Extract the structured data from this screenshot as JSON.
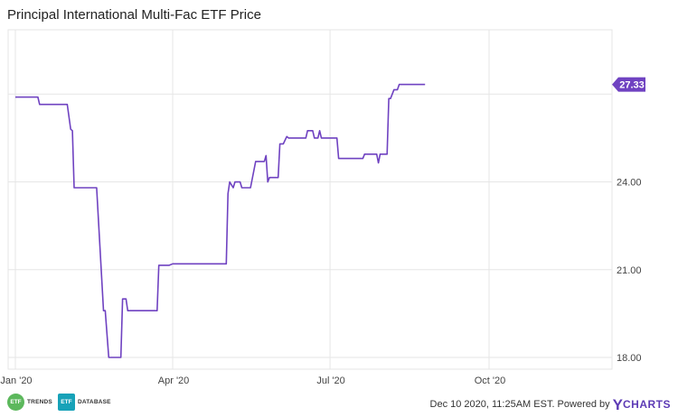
{
  "chart_data": {
    "type": "line",
    "title": "Principal International Multi-Fac ETF Price",
    "xlabel": "",
    "ylabel": "",
    "x_ticks": [
      "Jan '20",
      "Apr '20",
      "Jul '20",
      "Oct '20"
    ],
    "y_ticks": [
      "18.00",
      "21.00",
      "24.00"
    ],
    "ylim": [
      17.6,
      29.2
    ],
    "grid": true,
    "last_value_label": "27.33",
    "line_color": "#6f42c1",
    "series": [
      {
        "values": [
          [
            "2020-01-01",
            26.9
          ],
          [
            "2020-01-14",
            26.9
          ],
          [
            "2020-01-15",
            26.65
          ],
          [
            "2020-01-31",
            26.65
          ],
          [
            "2020-02-02",
            25.8
          ],
          [
            "2020-02-03",
            25.75
          ],
          [
            "2020-02-04",
            23.8
          ],
          [
            "2020-02-17",
            23.8
          ],
          [
            "2020-02-21",
            19.6
          ],
          [
            "2020-02-22",
            19.6
          ],
          [
            "2020-02-24",
            18.0
          ],
          [
            "2020-03-02",
            18.0
          ],
          [
            "2020-03-03",
            20.0
          ],
          [
            "2020-03-05",
            20.0
          ],
          [
            "2020-03-06",
            19.6
          ],
          [
            "2020-03-23",
            19.6
          ],
          [
            "2020-03-24",
            21.15
          ],
          [
            "2020-03-30",
            21.15
          ],
          [
            "2020-04-01",
            21.2
          ],
          [
            "2020-05-02",
            21.2
          ],
          [
            "2020-05-03",
            23.6
          ],
          [
            "2020-05-04",
            24.0
          ],
          [
            "2020-05-06",
            23.8
          ],
          [
            "2020-05-07",
            24.0
          ],
          [
            "2020-05-10",
            24.0
          ],
          [
            "2020-05-11",
            23.8
          ],
          [
            "2020-05-16",
            23.8
          ],
          [
            "2020-05-19",
            24.7
          ],
          [
            "2020-05-24",
            24.7
          ],
          [
            "2020-05-25",
            24.9
          ],
          [
            "2020-05-26",
            24.0
          ],
          [
            "2020-05-27",
            24.15
          ],
          [
            "2020-06-01",
            24.15
          ],
          [
            "2020-06-02",
            25.3
          ],
          [
            "2020-06-04",
            25.3
          ],
          [
            "2020-06-06",
            25.55
          ],
          [
            "2020-06-07",
            25.5
          ],
          [
            "2020-06-17",
            25.5
          ],
          [
            "2020-06-18",
            25.75
          ],
          [
            "2020-06-21",
            25.75
          ],
          [
            "2020-06-22",
            25.5
          ],
          [
            "2020-06-24",
            25.5
          ],
          [
            "2020-06-25",
            25.75
          ],
          [
            "2020-06-26",
            25.5
          ],
          [
            "2020-07-05",
            25.5
          ],
          [
            "2020-07-06",
            24.8
          ],
          [
            "2020-07-20",
            24.8
          ],
          [
            "2020-07-21",
            24.95
          ],
          [
            "2020-07-28",
            24.95
          ],
          [
            "2020-07-29",
            24.65
          ],
          [
            "2020-07-30",
            24.95
          ],
          [
            "2020-08-03",
            24.95
          ],
          [
            "2020-08-04",
            26.85
          ],
          [
            "2020-08-05",
            26.85
          ],
          [
            "2020-08-07",
            27.15
          ],
          [
            "2020-08-09",
            27.15
          ],
          [
            "2020-08-10",
            27.33
          ],
          [
            "2020-08-25",
            27.33
          ]
        ]
      }
    ]
  },
  "footer": {
    "logo1_mark": "ETF",
    "logo1_text": "TRENDS",
    "logo2_mark": "ETF",
    "logo2_text": "DATABASE",
    "timestamp": "Dec 10 2020, 11:25AM EST. Powered by",
    "brand_y": "Y",
    "brand_rest": "CHARTS"
  },
  "colors": {
    "line": "#6f42c1",
    "grid": "#e6e6e6",
    "badge_green": "#5cb85c",
    "badge_teal": "#17a2b8"
  }
}
